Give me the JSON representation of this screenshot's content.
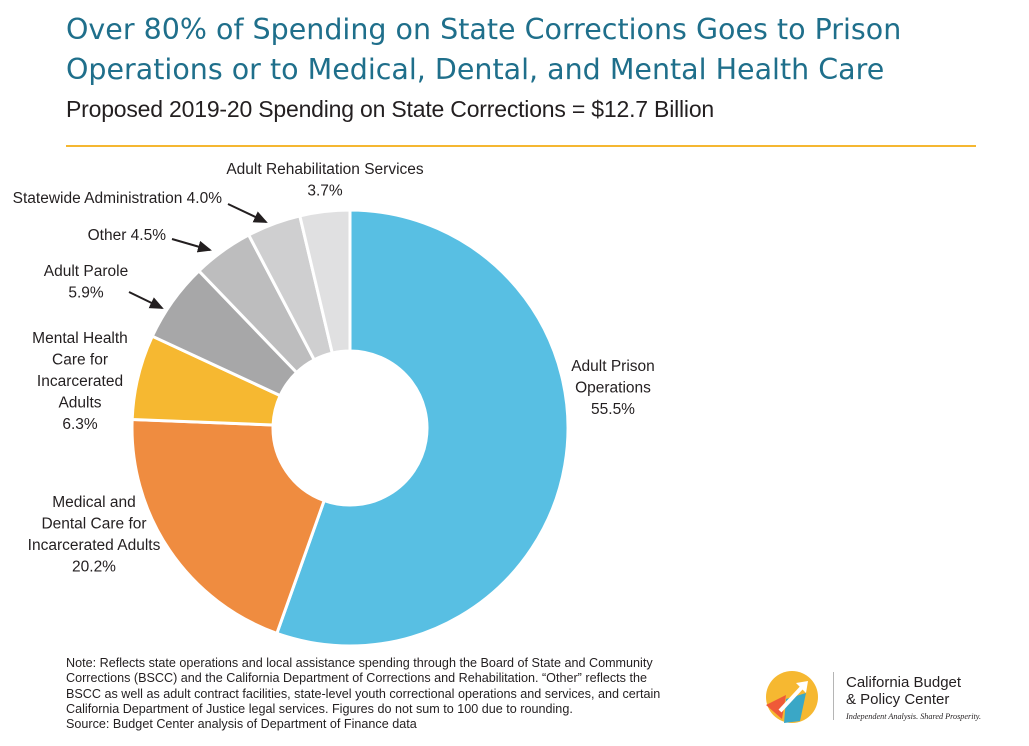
{
  "header": {
    "title": "Over 80% of Spending on State Corrections Goes to Prison Operations or to Medical, Dental, and Mental Health Care",
    "subtitle": "Proposed 2019-20 Spending on State Corrections = $12.7 Billion"
  },
  "chart_data": {
    "type": "pie",
    "donut": true,
    "slices": [
      {
        "lines": [
          "Adult Prison",
          "Operations",
          "55.5%"
        ],
        "value": 55.5,
        "color": "#58bfe3"
      },
      {
        "lines": [
          "Medical and",
          "Dental Care for",
          "Incarcerated Adults",
          "20.2%"
        ],
        "value": 20.2,
        "color": "#ef8c40"
      },
      {
        "lines": [
          "Mental Health",
          "Care for",
          "Incarcerated",
          "Adults",
          "6.3%"
        ],
        "value": 6.3,
        "color": "#f6b831"
      },
      {
        "lines": [
          "Adult Parole",
          "5.9%"
        ],
        "value": 5.9,
        "color": "#a7a7a8"
      },
      {
        "lines": [
          "Other 4.5%"
        ],
        "value": 4.5,
        "color": "#bdbdbe"
      },
      {
        "lines": [
          "Statewide Administration 4.0%"
        ],
        "value": 4.0,
        "color": "#cfcfd0"
      },
      {
        "lines": [
          "Adult Rehabilitation Services",
          "3.7%"
        ],
        "value": 3.7,
        "color": "#e0e0e1"
      }
    ]
  },
  "footer": {
    "note_lines": [
      "Note: Reflects state operations and local assistance spending through the Board of State and Community",
      "Corrections (BSCC) and the California Department of Corrections and Rehabilitation. “Other” reflects the",
      "BSCC as well as adult contract facilities, state-level youth correctional operations and services, and certain",
      "California Department of Justice legal services. Figures do not sum to 100 due to rounding.",
      "Source: Budget Center analysis of Department of Finance data"
    ]
  },
  "logo": {
    "name_line1": "California Budget",
    "name_line2": "& Policy Center",
    "tagline": "Independent Analysis. Shared Prosperity.",
    "colors": [
      "#f6b831",
      "#ef5a38",
      "#3aa7c6"
    ]
  }
}
